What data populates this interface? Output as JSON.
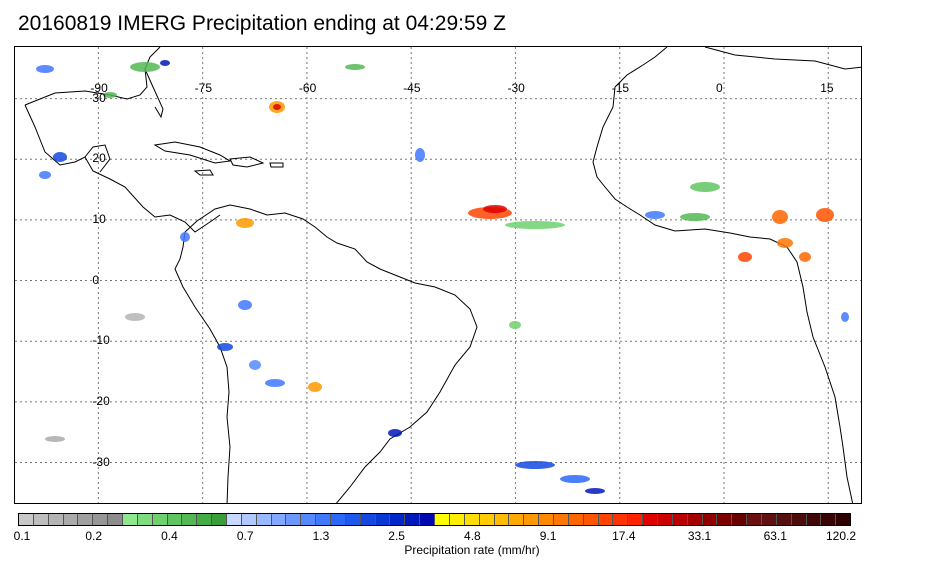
{
  "title": "20160819 IMERG Precipitation ending at 04:29:59 Z",
  "map": {
    "lon_labels": [
      "-90",
      "-75",
      "-60",
      "-45",
      "-30",
      "-15",
      "0",
      "15"
    ],
    "lat_labels": [
      "30",
      "20",
      "10",
      "0",
      "-10",
      "-20",
      "-30"
    ],
    "lon_values": [
      -90,
      -75,
      -60,
      -45,
      -30,
      -15,
      0,
      15
    ],
    "lat_values": [
      30,
      20,
      10,
      0,
      -10,
      -20,
      -30
    ],
    "lon_range": [
      -102,
      20
    ],
    "lat_range": [
      38.5,
      -37
    ],
    "land_outline_color": "#000000",
    "grid_color": "#777777"
  },
  "colorbar": {
    "label": "Precipitation rate (mm/hr)",
    "tick_labels": [
      "0.1",
      "0.2",
      "0.4",
      "0.7",
      "1.3",
      "2.5",
      "4.8",
      "9.1",
      "17.4",
      "33.1",
      "63.1",
      "120.2"
    ],
    "colors": [
      "#c8c8c8",
      "#bebebe",
      "#b4b4b4",
      "#aaaaaa",
      "#a0a0a0",
      "#969696",
      "#8c8c8c",
      "#8ee88e",
      "#7ddc7d",
      "#6ed06e",
      "#60c460",
      "#52b852",
      "#44ac44",
      "#389e38",
      "#c8d8ff",
      "#b0c8ff",
      "#98b8ff",
      "#82a8ff",
      "#6c98ff",
      "#5688ff",
      "#4078ff",
      "#2a68f8",
      "#1e58ec",
      "#1448e0",
      "#0a38d4",
      "#0028c8",
      "#0018bc",
      "#0008b0",
      "#ffff00",
      "#ffee00",
      "#ffdd00",
      "#ffcc00",
      "#ffbb00",
      "#ffaa00",
      "#ff9900",
      "#ff8800",
      "#ff7700",
      "#ff6600",
      "#ff5500",
      "#ff4400",
      "#ff3300",
      "#ff2200",
      "#e00000",
      "#cc0000",
      "#b80000",
      "#a40000",
      "#900000",
      "#7c0000",
      "#680000",
      "#6a1010",
      "#601010",
      "#561010",
      "#4c0c0c",
      "#420808",
      "#380404",
      "#2e0000"
    ]
  }
}
